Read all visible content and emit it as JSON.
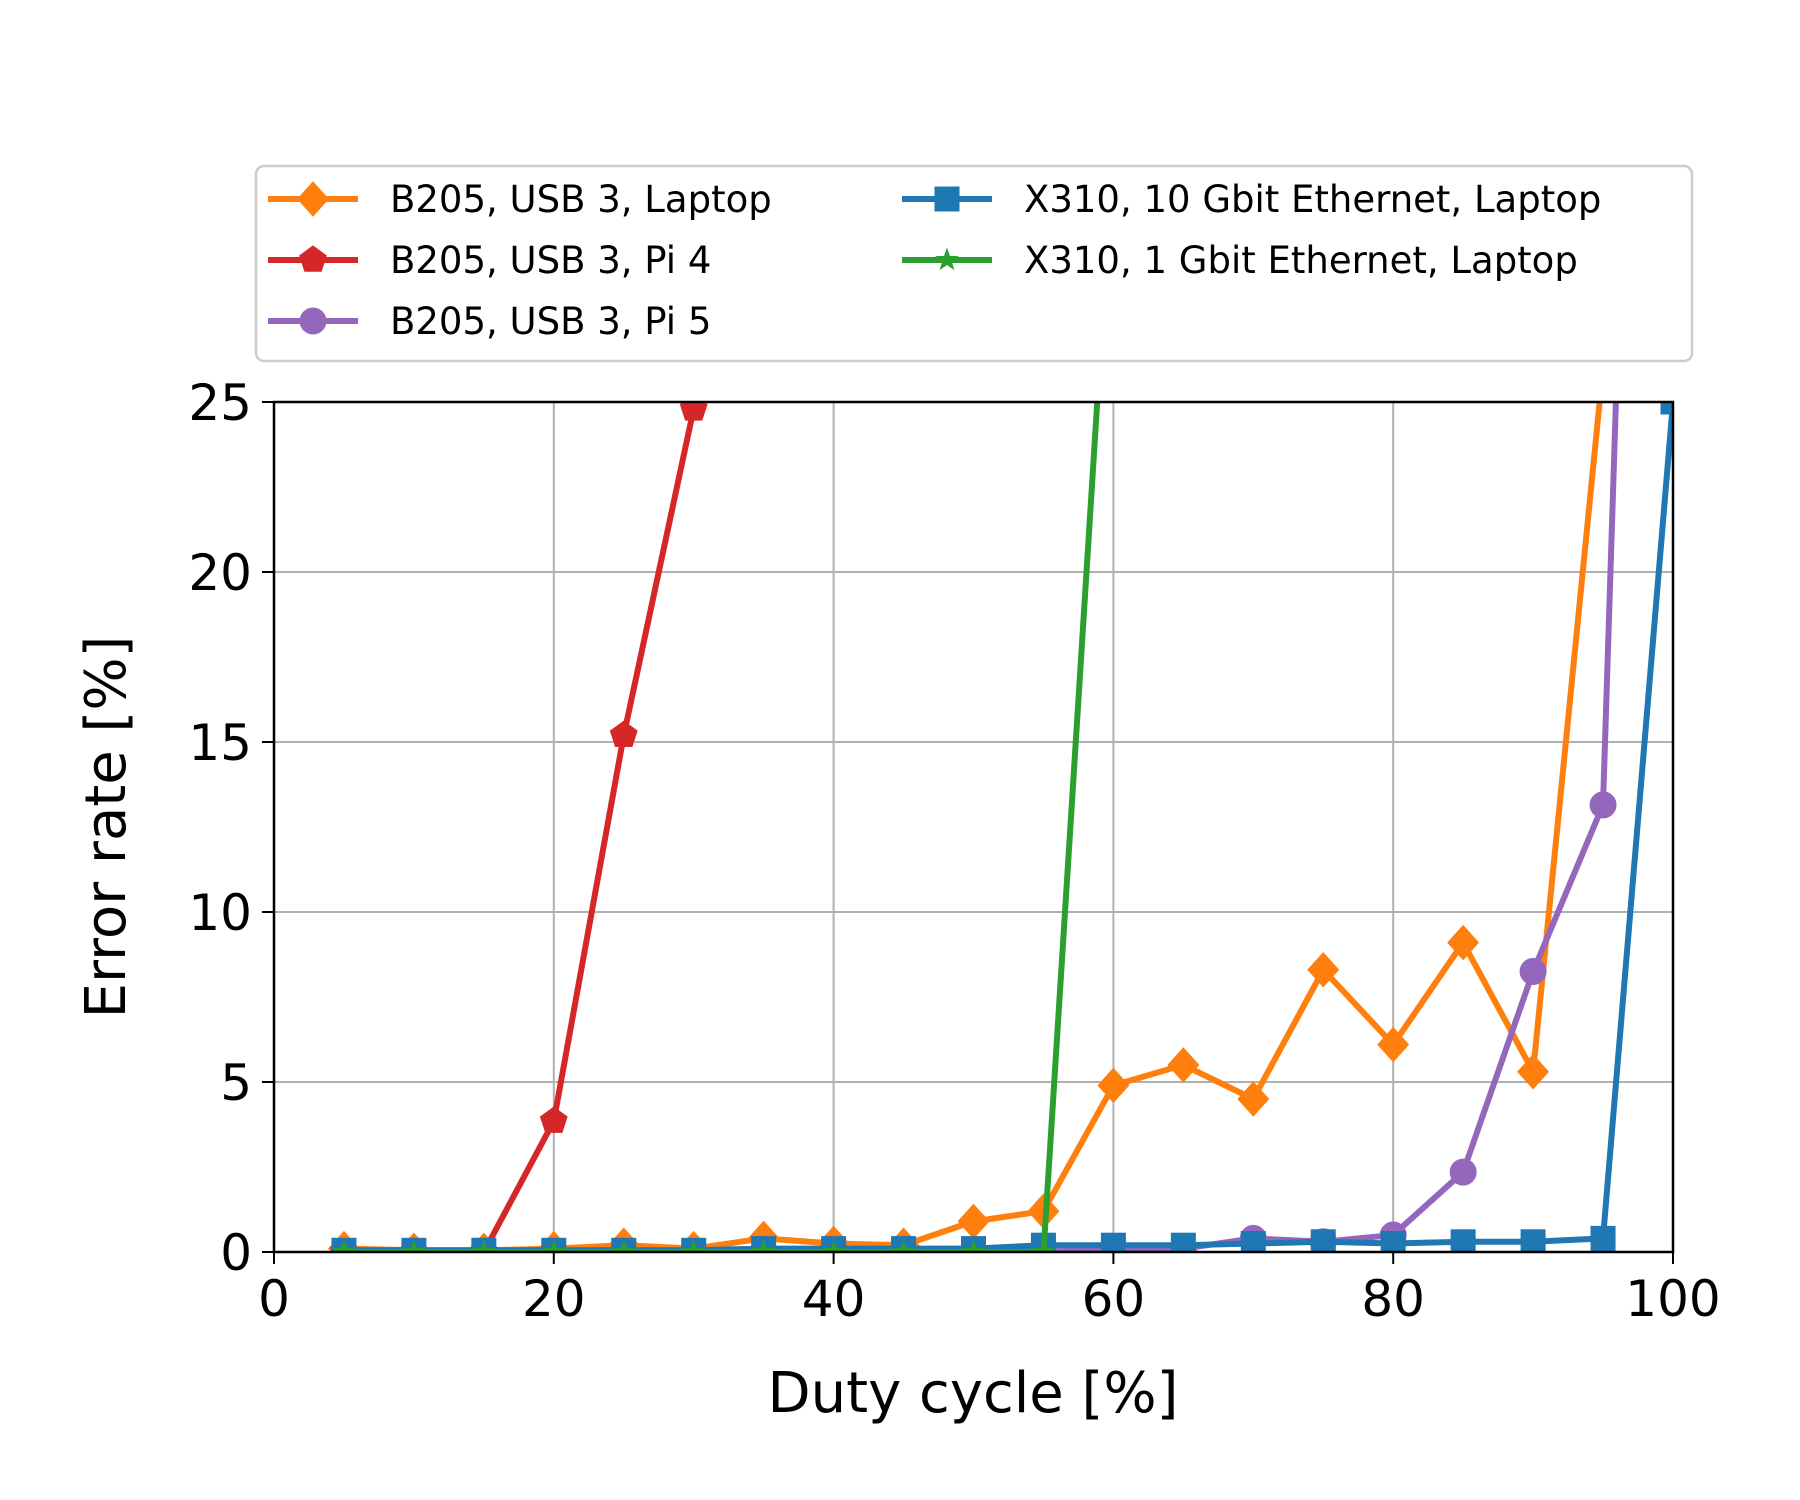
{
  "chart_data": {
    "type": "line",
    "xlabel": "Duty cycle [%]",
    "ylabel": "Error rate [%]",
    "xlim": [
      0,
      100
    ],
    "ylim": [
      0,
      25
    ],
    "xticks": [
      "0",
      "20",
      "40",
      "60",
      "80",
      "100"
    ],
    "yticks": [
      "0",
      "5",
      "10",
      "15",
      "20",
      "25"
    ],
    "grid": true,
    "legend_position": "above plot, two columns",
    "series": [
      {
        "name": "B205, USB 3, Laptop",
        "color": "#ff7f0e",
        "marker": "diamond",
        "x": [
          5,
          10,
          15,
          20,
          25,
          30,
          35,
          40,
          45,
          50,
          55,
          60,
          65,
          70,
          75,
          80,
          85,
          90,
          95
        ],
        "y": [
          0.1,
          0.05,
          0.05,
          0.1,
          0.2,
          0.1,
          0.4,
          0.25,
          0.2,
          0.9,
          1.2,
          4.9,
          5.5,
          4.5,
          8.3,
          6.1,
          9.1,
          5.3,
          26
        ]
      },
      {
        "name": "B205, USB 3, Pi 4",
        "color": "#d62728",
        "marker": "pentagon",
        "x": [
          5,
          10,
          15,
          20,
          25,
          30
        ],
        "y": [
          0.0,
          0.0,
          0.0,
          3.85,
          15.2,
          24.8
        ]
      },
      {
        "name": "B205, USB 3, Pi 5",
        "color": "#9467bd",
        "marker": "circle",
        "x": [
          5,
          10,
          15,
          20,
          25,
          30,
          35,
          40,
          45,
          50,
          55,
          60,
          65,
          70,
          75,
          80,
          85,
          90,
          95,
          96
        ],
        "y": [
          0.0,
          0.0,
          0.0,
          0.0,
          0.0,
          0.0,
          0.0,
          0.0,
          0.0,
          0.0,
          0.0,
          0.1,
          0.1,
          0.4,
          0.3,
          0.5,
          2.35,
          8.25,
          13.15,
          26
        ]
      },
      {
        "name": "X310, 10 Gbit Ethernet, Laptop",
        "color": "#1f77b4",
        "marker": "square",
        "x": [
          5,
          10,
          15,
          20,
          25,
          30,
          35,
          40,
          45,
          50,
          55,
          60,
          65,
          70,
          75,
          80,
          85,
          90,
          95,
          100
        ],
        "y": [
          0.05,
          0.05,
          0.05,
          0.05,
          0.05,
          0.05,
          0.1,
          0.1,
          0.1,
          0.1,
          0.2,
          0.2,
          0.2,
          0.25,
          0.3,
          0.25,
          0.3,
          0.3,
          0.4,
          25
        ]
      },
      {
        "name": "X310, 1 Gbit Ethernet, Laptop",
        "color": "#2ca02c",
        "marker": "star",
        "x": [
          5,
          10,
          15,
          20,
          25,
          30,
          35,
          40,
          45,
          50,
          55,
          59
        ],
        "y": [
          0.0,
          0.0,
          0.0,
          0.0,
          0.0,
          0.0,
          0.0,
          0.0,
          0.0,
          0.0,
          0.0,
          26
        ]
      }
    ]
  }
}
